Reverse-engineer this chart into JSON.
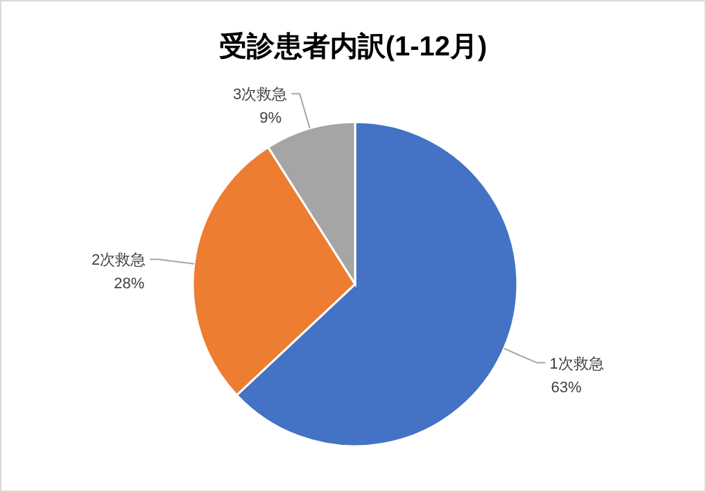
{
  "chart_data": {
    "type": "pie",
    "title": "受診患者内訳(1-12月)",
    "categories": [
      "1次救急",
      "2次救急",
      "3次救急"
    ],
    "values": [
      63,
      28,
      9
    ],
    "colors": [
      "#4472c4",
      "#ed7d31",
      "#a5a5a5"
    ],
    "value_labels": [
      "63%",
      "28%",
      "9%"
    ]
  }
}
